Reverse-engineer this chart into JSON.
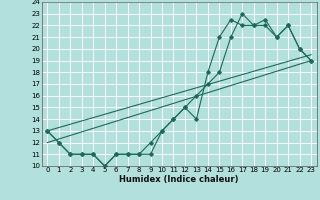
{
  "xlabel": "Humidex (Indice chaleur)",
  "bg_color": "#b2e0dc",
  "grid_color": "#ffffff",
  "line_color": "#1a6b5a",
  "xlim": [
    -0.5,
    23.5
  ],
  "ylim": [
    10,
    24
  ],
  "xticks": [
    0,
    1,
    2,
    3,
    4,
    5,
    6,
    7,
    8,
    9,
    10,
    11,
    12,
    13,
    14,
    15,
    16,
    17,
    18,
    19,
    20,
    21,
    22,
    23
  ],
  "yticks": [
    10,
    11,
    12,
    13,
    14,
    15,
    16,
    17,
    18,
    19,
    20,
    21,
    22,
    23,
    24
  ],
  "series1_x": [
    0,
    1,
    2,
    3,
    4,
    5,
    6,
    7,
    8,
    9,
    10,
    11,
    12,
    13,
    14,
    15,
    16,
    17,
    18,
    19,
    20,
    21,
    22,
    23
  ],
  "series1_y": [
    13,
    12,
    11,
    11,
    11,
    10,
    11,
    11,
    11,
    11,
    13,
    14,
    15,
    14,
    18,
    21,
    22.5,
    22,
    22,
    22,
    21,
    22,
    20,
    19
  ],
  "series2_x": [
    0,
    1,
    2,
    3,
    4,
    5,
    6,
    7,
    8,
    9,
    10,
    11,
    12,
    13,
    14,
    15,
    16,
    17,
    18,
    19,
    20,
    21,
    22,
    23
  ],
  "series2_y": [
    13,
    12,
    11,
    11,
    11,
    10,
    11,
    11,
    11,
    12,
    13,
    14,
    15,
    16,
    17,
    18,
    21,
    23,
    22,
    22.5,
    21,
    22,
    20,
    19
  ],
  "series3_x": [
    0,
    23
  ],
  "series3_y": [
    12,
    19
  ],
  "series4_x": [
    0,
    23
  ],
  "series4_y": [
    13,
    19.5
  ]
}
